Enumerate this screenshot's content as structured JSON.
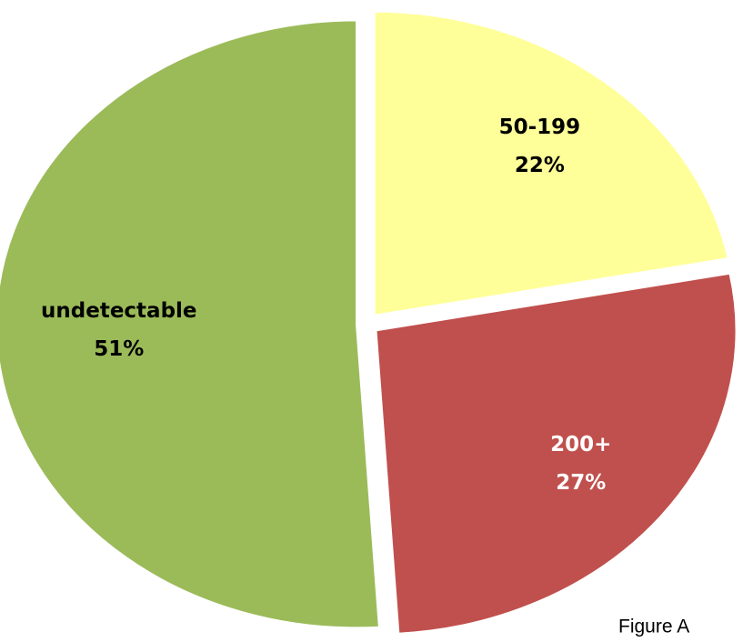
{
  "chart_data": {
    "type": "pie",
    "categories": [
      "50-199",
      "200+",
      "undetectable"
    ],
    "values": [
      22,
      27,
      51
    ],
    "value_labels": [
      "22%",
      "27%",
      "51%"
    ],
    "colors": [
      "#ffff99",
      "#c0504d",
      "#9bbb59"
    ],
    "annotation": "Figure A"
  }
}
